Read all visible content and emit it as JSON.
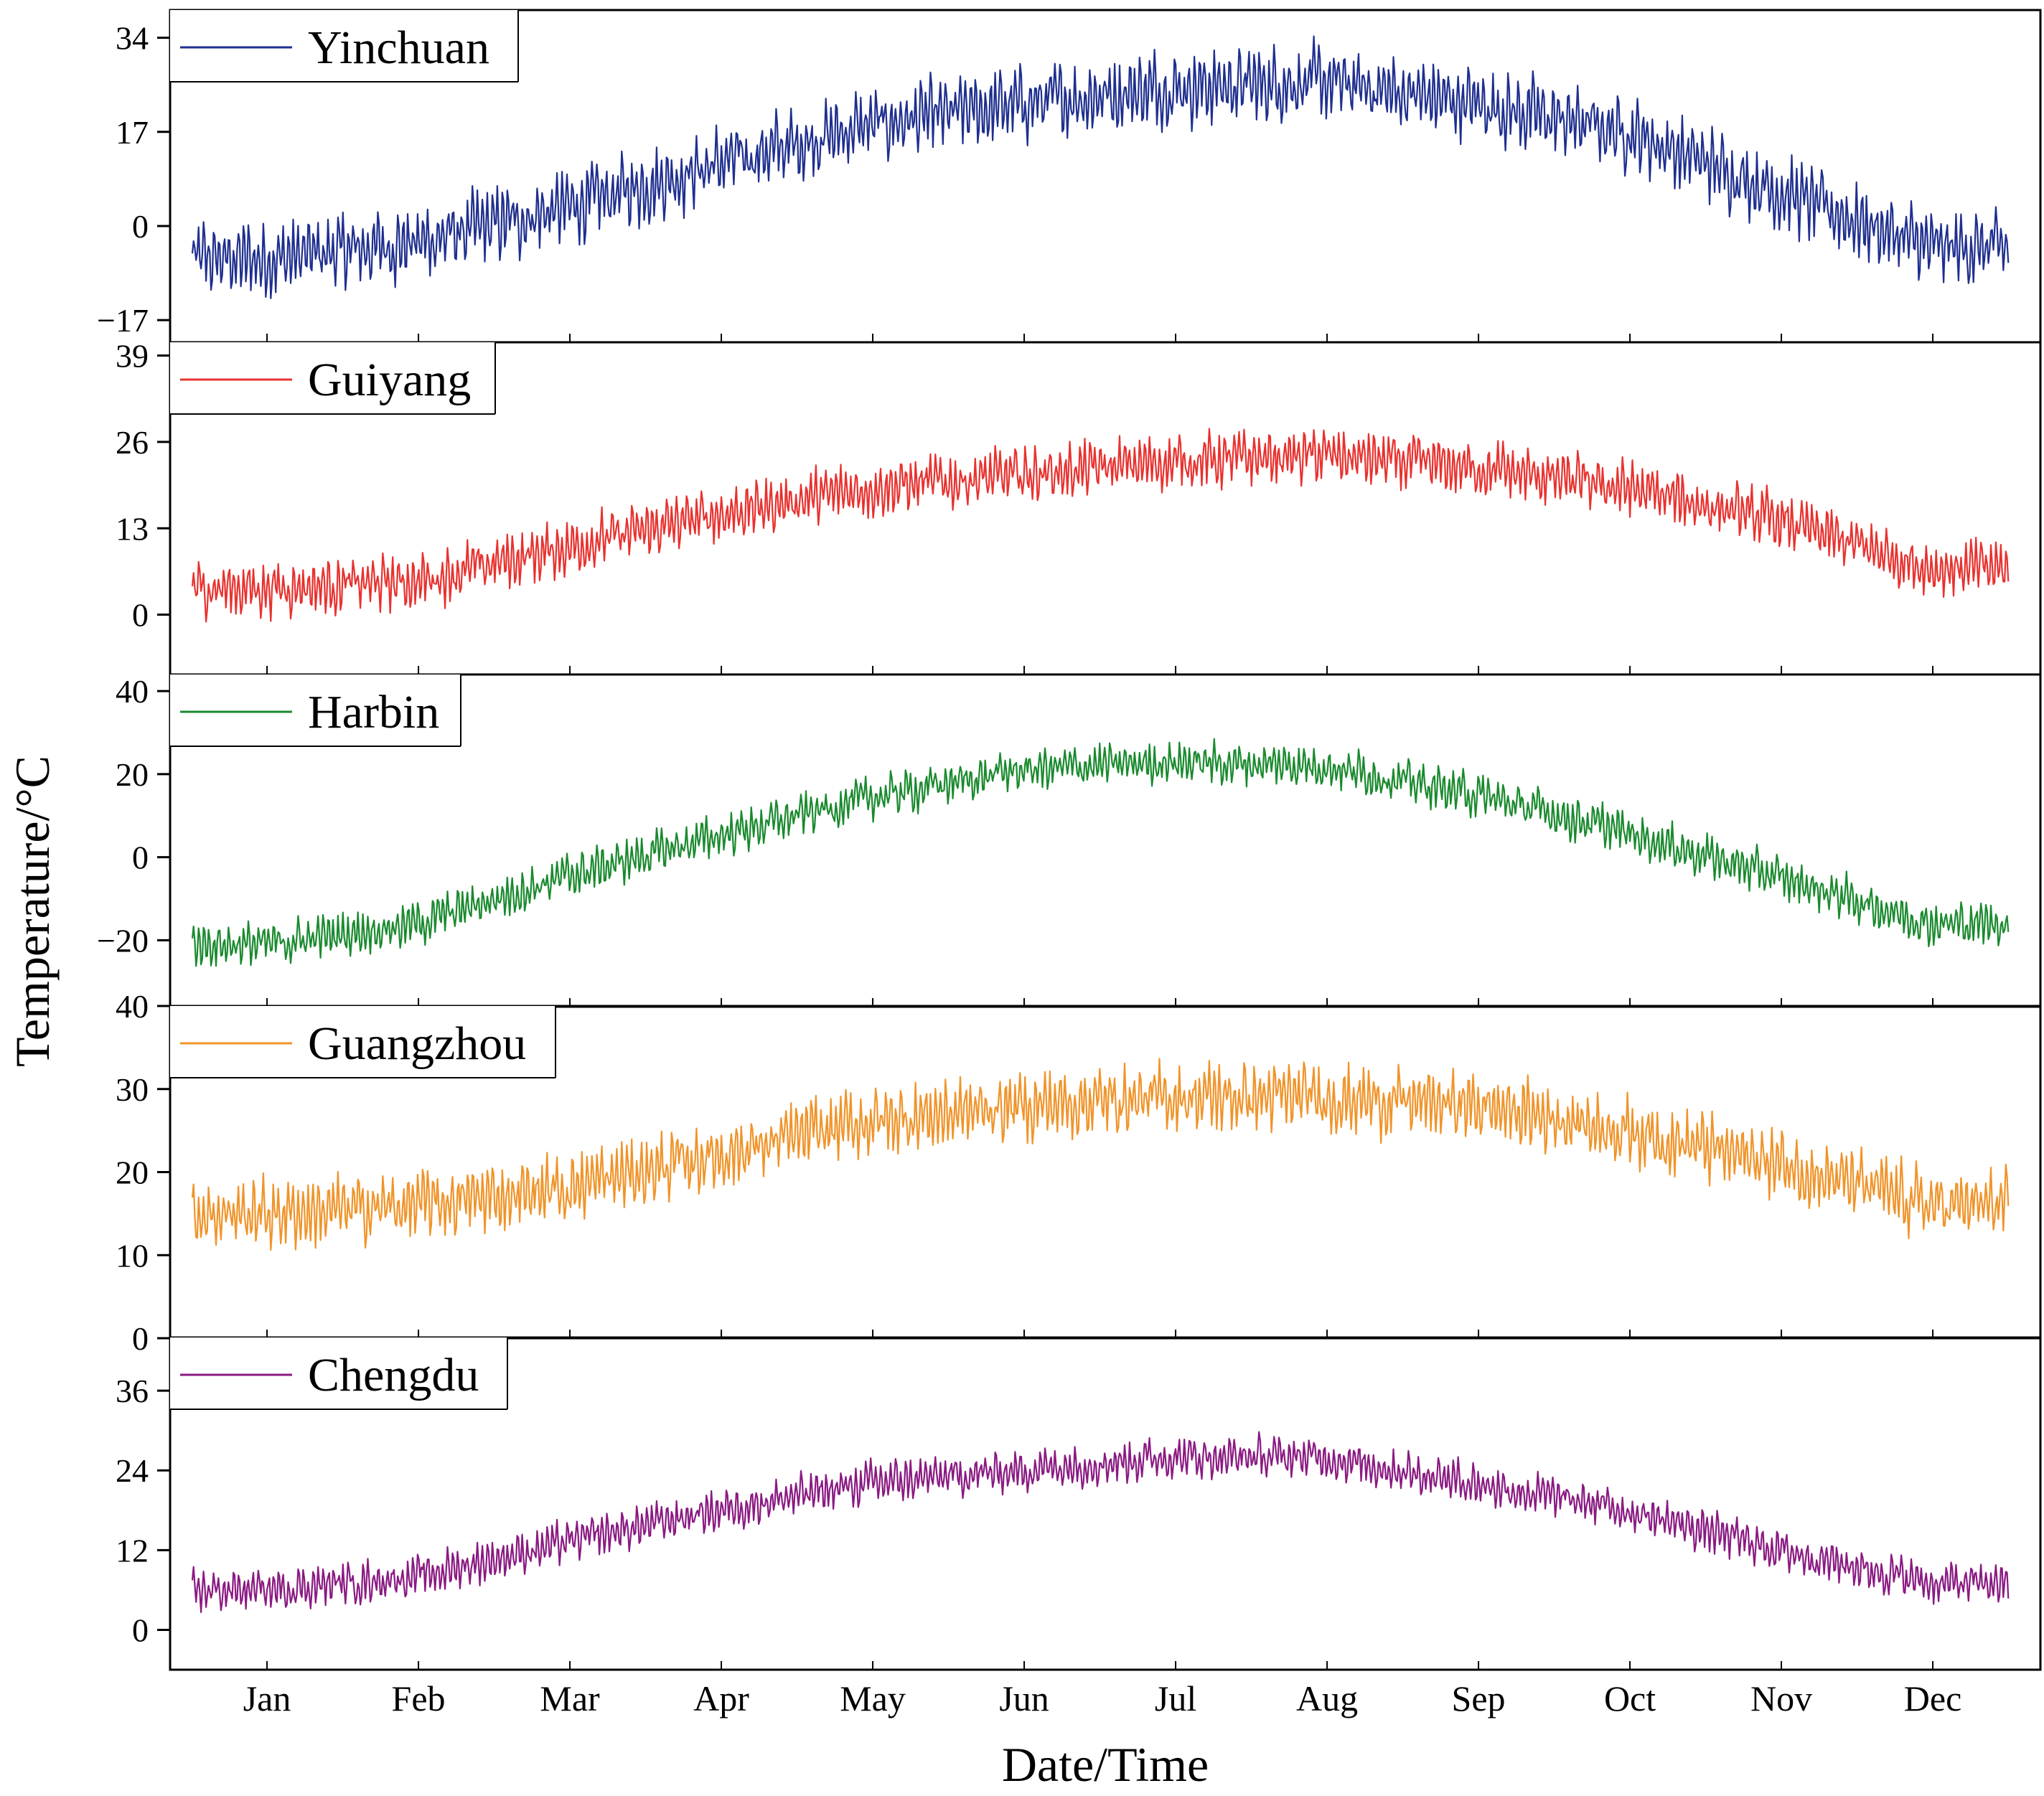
{
  "chart_data": {
    "type": "line",
    "xlabel": "Date/Time",
    "ylabel": "Temperature/°C",
    "x_tick_labels": [
      "Jan",
      "Feb",
      "Mar",
      "Apr",
      "May",
      "Jun",
      "Jul",
      "Aug",
      "Sep",
      "Oct",
      "Nov",
      "Dec"
    ],
    "x_unit": "day of year",
    "xlim": [
      0,
      365
    ],
    "panels": [
      {
        "name": "Yinchuan",
        "color": "#1f2f8f",
        "yticks": [
          "34",
          "17",
          "0",
          "−17"
        ],
        "ylim": [
          -21,
          39
        ],
        "monthly_mean": [
          -6,
          -3,
          3,
          11,
          18,
          22,
          25,
          26,
          22,
          17,
          6,
          -4
        ],
        "daily_swing": 13
      },
      {
        "name": "Guiyang",
        "color": "#e8322f",
        "yticks": [
          "39",
          "26",
          "13",
          "0"
        ],
        "ylim": [
          -9,
          41
        ],
        "monthly_mean": [
          4,
          5,
          10,
          15,
          19,
          21,
          23,
          24,
          22,
          19,
          14,
          7
        ],
        "daily_swing": 8
      },
      {
        "name": "Harbin",
        "color": "#1a8a2e",
        "yticks": [
          "40",
          "20",
          "0",
          "−20"
        ],
        "ylim": [
          -36,
          44
        ],
        "monthly_mean": [
          -21,
          -16,
          -5,
          5,
          14,
          21,
          23,
          22,
          15,
          6,
          -5,
          -16
        ],
        "daily_swing": 10
      },
      {
        "name": "Guangzhou",
        "color": "#f0942a",
        "yticks": [
          "40",
          "30",
          "20",
          "10",
          "0"
        ],
        "ylim": [
          0,
          40
        ],
        "monthly_mean": [
          15,
          16,
          18,
          22,
          26,
          28,
          29,
          29,
          28,
          25,
          21,
          16
        ],
        "daily_swing": 8
      },
      {
        "name": "Chengdu",
        "color": "#8a1a82",
        "yticks": [
          "36",
          "24",
          "12",
          "0"
        ],
        "ylim": [
          -6,
          44
        ],
        "monthly_mean": [
          6,
          8,
          13,
          18,
          22,
          24,
          26,
          26,
          22,
          18,
          12,
          7
        ],
        "daily_swing": 6
      }
    ]
  }
}
